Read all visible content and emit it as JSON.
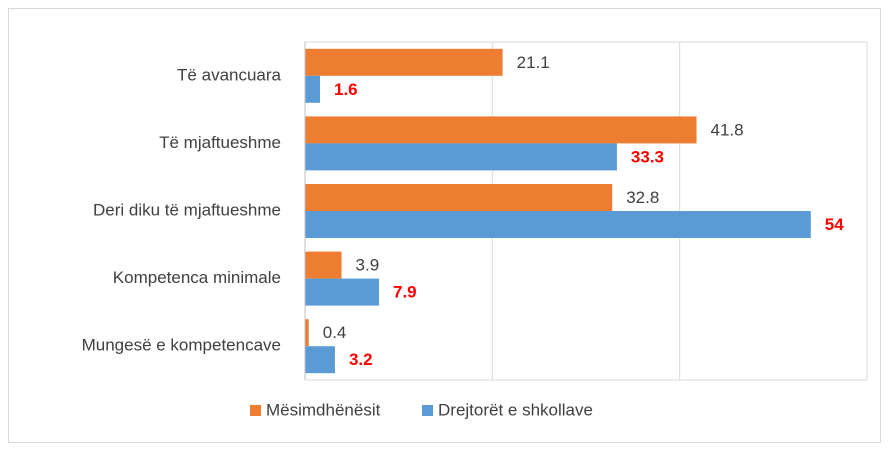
{
  "chart_data": {
    "type": "hbar",
    "categories": [
      "Të avancuara",
      "Të mjaftueshme",
      "Deri diku të mjaftueshme",
      "Kompetenca minimale",
      "Mungesë e kompetencave"
    ],
    "series": [
      {
        "name": "Mësimdhënësit",
        "color": "#ed7d31",
        "values": [
          21.1,
          41.8,
          32.8,
          3.9,
          0.4
        ]
      },
      {
        "name": "Drejtorët e shkollave",
        "color": "#5b9bd5",
        "values": [
          1.6,
          33.3,
          54,
          7.9,
          3.2
        ]
      }
    ],
    "xlim": [
      0,
      60
    ],
    "xticks": [
      0,
      20,
      40,
      60
    ],
    "grid": true,
    "legend": "bottom"
  }
}
